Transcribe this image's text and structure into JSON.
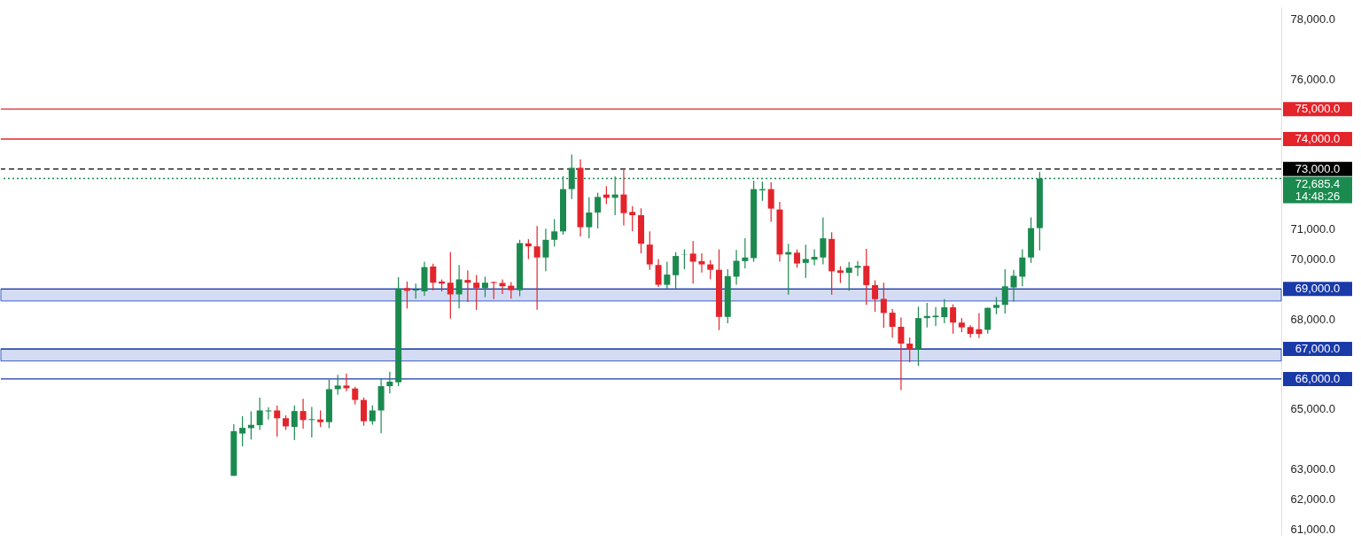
{
  "chart_data": {
    "type": "candlestick",
    "categories": [
      null,
      null,
      null,
      null,
      null,
      null,
      null,
      null,
      null,
      null,
      null,
      null,
      null,
      null,
      null,
      null,
      null,
      null,
      null,
      null,
      null,
      null,
      null,
      null,
      null,
      null,
      null,
      null,
      null,
      null,
      null,
      null,
      null,
      null,
      null,
      null,
      null,
      null,
      null,
      null,
      null,
      null,
      null,
      null,
      null,
      null,
      null,
      null,
      null,
      null,
      null,
      null,
      null,
      null,
      null,
      null,
      null,
      null,
      null,
      null,
      null,
      null,
      null,
      null,
      null,
      null,
      null,
      null,
      null,
      null,
      null,
      null,
      null,
      null,
      null,
      null,
      null,
      null,
      null,
      null,
      null,
      null,
      null,
      null,
      null,
      null,
      null,
      null,
      null,
      null,
      null,
      null,
      null,
      null,
      null,
      null,
      null,
      null,
      null,
      null,
      null,
      null,
      null,
      null,
      null,
      null,
      null,
      null,
      null,
      null,
      null,
      null,
      null,
      null,
      null,
      null,
      null,
      null,
      null,
      null,
      null,
      null,
      null,
      null,
      null,
      null,
      null,
      null,
      null,
      null,
      null,
      null,
      null,
      null,
      null,
      null,
      null,
      null,
      null,
      null,
      null,
      null,
      null,
      null,
      null,
      null,
      null
    ],
    "ohlc": [
      null,
      null,
      null,
      null,
      null,
      null,
      null,
      null,
      null,
      null,
      null,
      null,
      null,
      null,
      null,
      null,
      null,
      null,
      null,
      null,
      null,
      null,
      null,
      null,
      null,
      null,
      [
        62770,
        64490,
        62770,
        64260
      ],
      [
        64180,
        64760,
        63750,
        64370
      ],
      [
        64360,
        64920,
        63980,
        64470
      ],
      [
        64460,
        65380,
        64300,
        64950
      ],
      [
        64920,
        65050,
        64650,
        64950
      ],
      [
        64950,
        65110,
        64080,
        64690
      ],
      [
        64690,
        64790,
        64300,
        64420
      ],
      [
        64400,
        65110,
        63960,
        64930
      ],
      [
        64930,
        65340,
        64340,
        64630
      ],
      [
        64630,
        65070,
        64050,
        64660
      ],
      [
        64650,
        64950,
        64400,
        64560
      ],
      [
        64560,
        65980,
        64360,
        65660
      ],
      [
        65660,
        66140,
        65470,
        65780
      ],
      [
        65780,
        66180,
        65590,
        65690
      ],
      [
        65680,
        65740,
        65150,
        65300
      ],
      [
        65300,
        65380,
        64440,
        64590
      ],
      [
        64590,
        65120,
        64480,
        64950
      ],
      [
        64950,
        66020,
        64190,
        65760
      ],
      [
        65760,
        66240,
        65520,
        65910
      ],
      [
        65890,
        69390,
        65760,
        69020
      ],
      [
        69030,
        69250,
        68350,
        68940
      ],
      [
        68950,
        69180,
        68680,
        68980
      ],
      [
        68920,
        69910,
        68770,
        69730
      ],
      [
        69750,
        69840,
        68960,
        69210
      ],
      [
        69250,
        69320,
        68920,
        69180
      ],
      [
        69210,
        70230,
        68010,
        68820
      ],
      [
        68820,
        69800,
        68350,
        69320
      ],
      [
        69300,
        69620,
        68570,
        69210
      ],
      [
        69210,
        69470,
        68300,
        69030
      ],
      [
        69030,
        69410,
        68730,
        69210
      ],
      [
        69230,
        69250,
        68660,
        69200
      ],
      [
        69200,
        69320,
        68830,
        69090
      ],
      [
        69110,
        69230,
        68680,
        68960
      ],
      [
        68960,
        70640,
        68760,
        70530
      ],
      [
        70520,
        70660,
        70000,
        70420
      ],
      [
        70420,
        71100,
        68310,
        70050
      ],
      [
        70050,
        71010,
        69590,
        70640
      ],
      [
        70640,
        71330,
        70420,
        70920
      ],
      [
        70920,
        72760,
        70810,
        72330
      ],
      [
        72330,
        73480,
        72000,
        73040
      ],
      [
        73040,
        73320,
        70750,
        71060
      ],
      [
        71060,
        72060,
        70690,
        71550
      ],
      [
        71550,
        72210,
        71020,
        72070
      ],
      [
        72150,
        72430,
        71830,
        72040
      ],
      [
        72040,
        72750,
        71460,
        72150
      ],
      [
        72150,
        72970,
        71120,
        71530
      ],
      [
        71570,
        71760,
        70920,
        71460
      ],
      [
        71460,
        71690,
        70190,
        70510
      ],
      [
        70480,
        70920,
        69640,
        69820
      ],
      [
        69800,
        70000,
        69070,
        69140
      ],
      [
        69140,
        69910,
        69020,
        69480
      ],
      [
        69460,
        70230,
        69020,
        70100
      ],
      [
        70150,
        70320,
        69660,
        70160
      ],
      [
        70180,
        70600,
        69180,
        69910
      ],
      [
        69930,
        70190,
        69550,
        69820
      ],
      [
        69820,
        69960,
        69320,
        69640
      ],
      [
        69640,
        70320,
        67630,
        68070
      ],
      [
        68070,
        69660,
        67860,
        69430
      ],
      [
        69410,
        70300,
        69140,
        69940
      ],
      [
        69930,
        70690,
        69690,
        70050
      ],
      [
        70030,
        72610,
        69910,
        72330
      ],
      [
        72290,
        72580,
        71940,
        72330
      ],
      [
        72330,
        72560,
        71240,
        71680
      ],
      [
        71650,
        71900,
        69910,
        70150
      ],
      [
        70150,
        70510,
        68810,
        70230
      ],
      [
        70210,
        70320,
        69710,
        69850
      ],
      [
        69870,
        70480,
        69370,
        70000
      ],
      [
        69980,
        70320,
        69790,
        70070
      ],
      [
        70050,
        71390,
        69820,
        70690
      ],
      [
        70670,
        70890,
        68810,
        69590
      ],
      [
        69620,
        69760,
        69200,
        69540
      ],
      [
        69540,
        69900,
        68940,
        69710
      ],
      [
        69710,
        69930,
        69430,
        69770
      ],
      [
        69770,
        70340,
        68470,
        69130
      ],
      [
        69130,
        69290,
        68240,
        68660
      ],
      [
        68670,
        69210,
        67700,
        68200
      ],
      [
        68210,
        68330,
        67380,
        67740
      ],
      [
        67740,
        68050,
        65630,
        67180
      ],
      [
        67180,
        67380,
        66560,
        66980
      ],
      [
        66980,
        68410,
        66440,
        68030
      ],
      [
        68030,
        68540,
        67720,
        68100
      ],
      [
        68060,
        68400,
        67760,
        68110
      ],
      [
        68060,
        68660,
        67860,
        68390
      ],
      [
        68390,
        68490,
        67510,
        67880
      ],
      [
        67880,
        68030,
        67560,
        67720
      ],
      [
        67730,
        67790,
        67380,
        67500
      ],
      [
        67660,
        68200,
        67360,
        67500
      ],
      [
        67640,
        68380,
        67510,
        68370
      ],
      [
        68370,
        68730,
        68160,
        68470
      ],
      [
        68470,
        69660,
        68180,
        69090
      ],
      [
        69050,
        69640,
        68580,
        69440
      ],
      [
        69410,
        70320,
        69090,
        70050
      ],
      [
        70050,
        71390,
        69870,
        71030
      ],
      [
        71030,
        72900,
        70290,
        72685.4
      ],
      null,
      null,
      null,
      null,
      null,
      null,
      null,
      null,
      null,
      null,
      null,
      null,
      null,
      null,
      null,
      null,
      null,
      null,
      null,
      null,
      null,
      null,
      null,
      null,
      null,
      null,
      null
    ],
    "colors": [
      null,
      null,
      null,
      null,
      null,
      null,
      null,
      null,
      null,
      null,
      null,
      null,
      null,
      null,
      null,
      null,
      null,
      null,
      null,
      null,
      null,
      null,
      null,
      null,
      null,
      null,
      "#1b8a4f",
      "#1b8a4f",
      "#1b8a4f",
      "#1b8a4f",
      "#1b8a4f",
      "#e3242b",
      "#e3242b",
      "#1b8a4f",
      "#e3242b",
      "#1b8a4f",
      "#e3242b",
      "#1b8a4f",
      "#1b8a4f",
      "#e3242b",
      "#e3242b",
      "#e3242b",
      "#1b8a4f",
      "#1b8a4f",
      "#1b8a4f",
      "#1b8a4f",
      "#e3242b",
      "#1b8a4f",
      "#1b8a4f",
      "#e3242b",
      "#e3242b",
      "#e3242b",
      "#1b8a4f",
      "#e3242b",
      "#e3242b",
      "#1b8a4f",
      "#e3242b",
      "#e3242b",
      "#e3242b",
      "#1b8a4f",
      "#e3242b",
      "#e3242b",
      "#1b8a4f",
      "#1b8a4f",
      "#1b8a4f",
      "#1b8a4f",
      "#e3242b",
      "#1b8a4f",
      "#1b8a4f",
      "#e3242b",
      "#1b8a4f",
      "#e3242b",
      "#e3242b",
      "#e3242b",
      "#e3242b",
      "#e3242b",
      "#1b8a4f",
      "#1b8a4f",
      "#1b8a4f",
      "#e3242b",
      "#e3242b",
      "#e3242b",
      "#e3242b",
      "#1b8a4f",
      "#1b8a4f",
      "#1b8a4f",
      "#1b8a4f",
      "#1b8a4f",
      "#e3242b",
      "#e3242b",
      "#1b8a4f",
      "#e3242b",
      "#1b8a4f",
      "#1b8a4f",
      "#1b8a4f",
      "#e3242b",
      "#e3242b",
      "#1b8a4f",
      "#1b8a4f",
      "#e3242b",
      "#e3242b",
      "#e3242b",
      "#e3242b",
      "#e3242b",
      "#e3242b",
      "#1b8a4f",
      "#1b8a4f",
      "#1b8a4f",
      "#1b8a4f",
      "#e3242b",
      "#e3242b",
      "#e3242b",
      "#e3242b",
      "#1b8a4f",
      "#1b8a4f",
      "#1b8a4f",
      "#1b8a4f",
      "#1b8a4f",
      "#1b8a4f",
      "#1b8a4f",
      null,
      null,
      null,
      null,
      null,
      null,
      null,
      null,
      null,
      null,
      null,
      null,
      null,
      null,
      null,
      null,
      null,
      null,
      null,
      null,
      null,
      null,
      null,
      null,
      null,
      null,
      null
    ],
    "ylim": [
      60800,
      78400
    ],
    "yticks": [
      {
        "value": 61000,
        "label": "61,000.0"
      },
      {
        "value": 62000,
        "label": "62,000.0"
      },
      {
        "value": 63000,
        "label": "63,000.0"
      },
      {
        "value": 65000,
        "label": "65,000.0"
      },
      {
        "value": 68000,
        "label": "68,000.0"
      },
      {
        "value": 70000,
        "label": "70,000.0"
      },
      {
        "value": 71000,
        "label": "71,000.0"
      },
      {
        "value": 76000,
        "label": "76,000.0"
      },
      {
        "value": 78000,
        "label": "78,000.0"
      }
    ],
    "tick_labels": "y",
    "grid": false,
    "ref_lines": [
      {
        "axis": "y",
        "value": 75000,
        "label": "75,000.0",
        "color": "#e3242b",
        "line_style": "solid"
      },
      {
        "axis": "y",
        "value": 74000,
        "label": "74,000.0",
        "color": "#e3242b",
        "line_style": "solid"
      },
      {
        "axis": "y",
        "value": 73000,
        "label": "73,000.0",
        "color": "#000000",
        "line_style": "dashed"
      },
      {
        "axis": "y",
        "value": 72685.4,
        "label": "72,685.4\n14:48:26",
        "color": "#1b8a4f",
        "line_style": "dotted"
      },
      {
        "axis": "y",
        "value": 69000,
        "label": "69,000.0",
        "color": "#1a3aa8",
        "line_style": "solid"
      },
      {
        "axis": "y",
        "value": 67000,
        "label": "67,000.0",
        "color": "#1a3aa8",
        "line_style": "solid"
      },
      {
        "axis": "y",
        "value": 66000,
        "label": "66,000.0",
        "color": "#1a3aa8",
        "line_style": "solid"
      }
    ],
    "bands": [
      {
        "axis": "y",
        "from": 68600,
        "to": 69000,
        "color": "#3a5fc8"
      },
      {
        "axis": "y",
        "from": 66600,
        "to": 67000,
        "color": "#3a5fc8"
      }
    ]
  }
}
